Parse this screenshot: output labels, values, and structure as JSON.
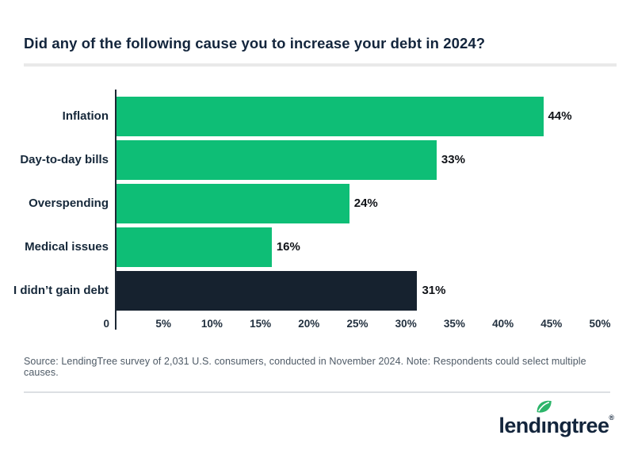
{
  "title": "Did any of the following cause you to increase your debt in 2024?",
  "chart_data": {
    "type": "bar",
    "orientation": "horizontal",
    "title": "Did any of the following cause you to increase your debt in 2024?",
    "categories": [
      "Inflation",
      "Day-to-day bills",
      "Overspending",
      "Medical issues",
      "I didn’t gain debt"
    ],
    "values": [
      44,
      33,
      24,
      16,
      31
    ],
    "value_labels": [
      "44%",
      "33%",
      "24%",
      "16%",
      "31%"
    ],
    "bar_colors": [
      "#0EBE76",
      "#0EBE76",
      "#0EBE76",
      "#0EBE76",
      "#16222F"
    ],
    "xlabel": "",
    "ylabel": "",
    "xlim": [
      0,
      50
    ],
    "x_ticks": [
      "0",
      "5%",
      "10%",
      "15%",
      "20%",
      "25%",
      "30%",
      "35%",
      "40%",
      "45%",
      "50%"
    ],
    "x_tick_values": [
      0,
      5,
      10,
      15,
      20,
      25,
      30,
      35,
      40,
      45,
      50
    ],
    "grid": false,
    "legend": "none"
  },
  "source_note": "Source: LendingTree survey of 2,031 U.S. consumers, conducted in November 2024. Note: Respondents could select multiple causes.",
  "logo": {
    "brand_part1": "lend",
    "brand_part_i": "ı",
    "brand_part2": "ngtree",
    "registered": "®"
  },
  "colors": {
    "bar_green": "#0EBE76",
    "bar_navy": "#16222F",
    "title_text": "#13253C",
    "tick_text": "#22303F",
    "source_text": "#4e5a66",
    "divider": "#e9e9e9",
    "logo_leaf_green": "#2CB56A",
    "logo_text": "#13253C"
  }
}
